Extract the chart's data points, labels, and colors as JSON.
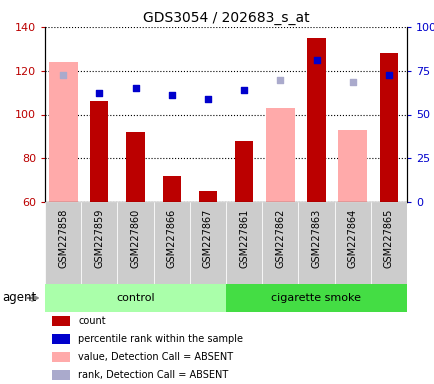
{
  "title": "GDS3054 / 202683_s_at",
  "samples": [
    "GSM227858",
    "GSM227859",
    "GSM227860",
    "GSM227866",
    "GSM227867",
    "GSM227861",
    "GSM227862",
    "GSM227863",
    "GSM227864",
    "GSM227865"
  ],
  "groups": [
    "control",
    "control",
    "control",
    "control",
    "control",
    "cigarette smoke",
    "cigarette smoke",
    "cigarette smoke",
    "cigarette smoke",
    "cigarette smoke"
  ],
  "count_present": [
    null,
    106,
    92,
    72,
    65,
    88,
    null,
    135,
    null,
    128
  ],
  "count_absent": [
    124,
    null,
    null,
    null,
    null,
    null,
    103,
    null,
    93,
    null
  ],
  "rank_present": [
    null,
    110,
    112,
    109,
    107,
    111,
    null,
    125,
    null,
    118
  ],
  "rank_absent": [
    118,
    null,
    null,
    null,
    null,
    null,
    116,
    null,
    115,
    null
  ],
  "ylim_left": [
    60,
    140
  ],
  "ylim_right": [
    0,
    100
  ],
  "yticks_left": [
    60,
    80,
    100,
    120,
    140
  ],
  "yticks_right": [
    0,
    25,
    50,
    75,
    100
  ],
  "ytick_labels_right": [
    "0",
    "25",
    "50",
    "75",
    "100%"
  ],
  "color_count_present": "#bb0000",
  "color_count_absent": "#ffaaaa",
  "color_rank_present": "#0000cc",
  "color_rank_absent": "#aaaacc",
  "grid_color": "black",
  "bg_xticklabels": "#cccccc",
  "group_color_control": "#aaffaa",
  "group_color_smoke": "#44dd44",
  "legend_items": [
    {
      "color": "#bb0000",
      "label": "count"
    },
    {
      "color": "#0000cc",
      "label": "percentile rank within the sample"
    },
    {
      "color": "#ffaaaa",
      "label": "value, Detection Call = ABSENT"
    },
    {
      "color": "#aaaacc",
      "label": "rank, Detection Call = ABSENT"
    }
  ],
  "agent_label": "agent",
  "bar_width": 0.5
}
